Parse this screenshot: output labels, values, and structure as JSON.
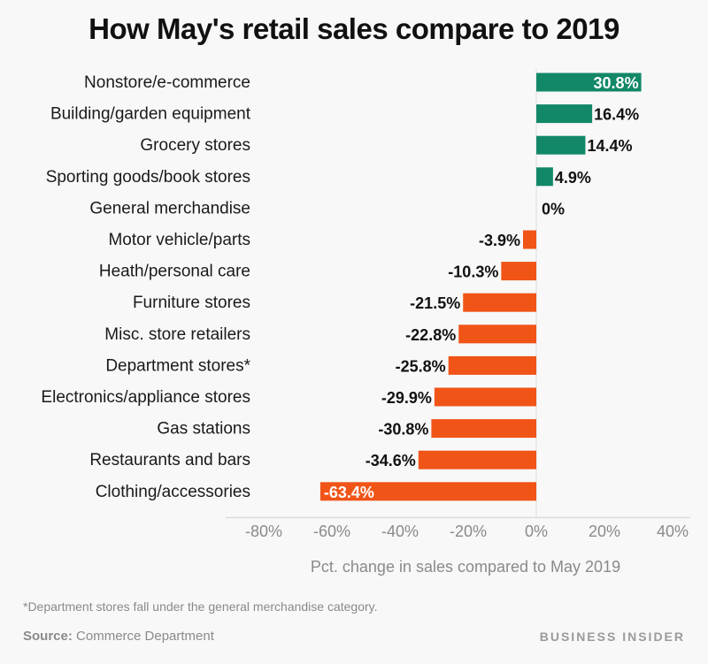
{
  "chart_data": {
    "type": "bar",
    "orientation": "horizontal",
    "title": "How May's retail sales compare to 2019",
    "xlabel": "Pct. change in sales compared to May 2019",
    "ylabel": "",
    "xlim": [
      -80,
      40
    ],
    "xticks": [
      -80,
      -60,
      -40,
      -20,
      0,
      20,
      40
    ],
    "tick_labels": [
      "-80%",
      "-60%",
      "-40%",
      "-20%",
      "0%",
      "20%",
      "40%"
    ],
    "grid": false,
    "categories": [
      "Nonstore/e-commerce",
      "Building/garden equipment",
      "Grocery stores",
      "Sporting goods/book stores",
      "General merchandise",
      "Motor vehicle/parts",
      "Heath/personal care",
      "Furniture stores",
      "Misc. store retailers",
      "Department stores*",
      "Electronics/appliance stores",
      "Gas stations",
      "Restaurants and bars",
      "Clothing/accessories"
    ],
    "values": [
      30.8,
      16.4,
      14.4,
      4.9,
      0,
      -3.9,
      -10.3,
      -21.5,
      -22.8,
      -25.8,
      -29.9,
      -30.8,
      -34.6,
      -63.4
    ],
    "value_labels": [
      "30.8%",
      "16.4%",
      "14.4%",
      "4.9%",
      "0%",
      "-3.9%",
      "-10.3%",
      "-21.5%",
      "-22.8%",
      "-25.8%",
      "-29.9%",
      "-30.8%",
      "-34.6%",
      "-63.4%"
    ],
    "colors": {
      "positive": "#128868",
      "negative": "#f05417",
      "axis": "#dddddd"
    }
  },
  "footer": {
    "footnote": "*Department stores fall under the general merchandise category.",
    "source_label": "Source:",
    "source_text": " Commerce Department",
    "brand": "BUSINESS INSIDER"
  }
}
